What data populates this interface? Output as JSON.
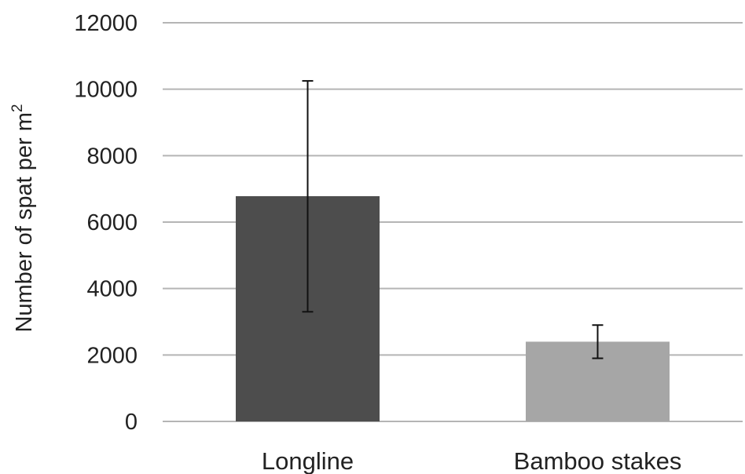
{
  "chart_data": {
    "type": "bar",
    "categories": [
      "Longline",
      "Bamboo stakes"
    ],
    "values": [
      6780,
      2400
    ],
    "errors": [
      [
        3300,
        10250
      ],
      [
        1900,
        2900
      ]
    ],
    "colors": [
      "#4d4d4d",
      "#a6a6a6"
    ],
    "ylabel": "Number of spat per m",
    "ylabel_superscript": "2",
    "ylim": [
      0,
      12000
    ],
    "yticks": [
      0,
      2000,
      4000,
      6000,
      8000,
      10000,
      12000
    ],
    "grid": true,
    "legend": "none"
  }
}
